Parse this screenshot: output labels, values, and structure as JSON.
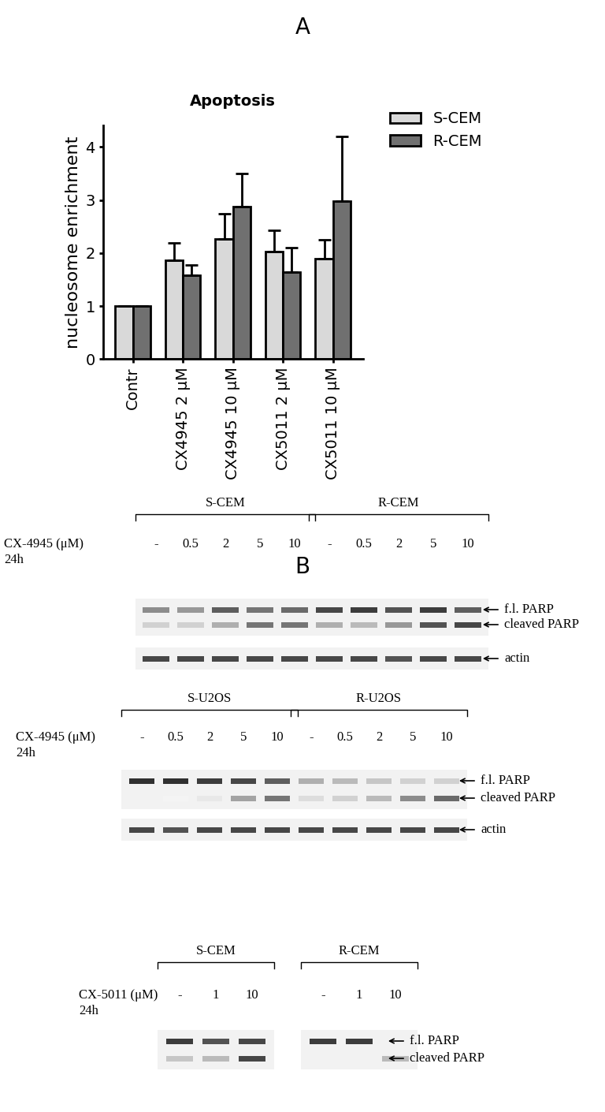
{
  "panel_labels": [
    "A",
    "B"
  ],
  "chart_data": {
    "type": "bar",
    "title": "Apoptosis",
    "y_label": "nucleosome enrichment",
    "categories": [
      "Contr",
      "CX4945 2 μM",
      "CX4945 10 μM",
      "CX5011 2 μM",
      "CX5011 10 μM"
    ],
    "series": [
      {
        "name": "S-CEM",
        "color": "#d9d9d9",
        "values": [
          1,
          1.87,
          2.27,
          2.03,
          1.9
        ],
        "errors": [
          0,
          0.32,
          0.47,
          0.4,
          0.35
        ]
      },
      {
        "name": "R-CEM",
        "color": "#707070",
        "values": [
          1,
          1.58,
          2.88,
          1.64,
          2.98
        ],
        "errors": [
          0,
          0.2,
          0.62,
          0.46,
          1.22
        ]
      }
    ],
    "ylim": [
      0,
      4.4
    ],
    "yticks": [
      0,
      1,
      2,
      3,
      4
    ],
    "legend": "upper left",
    "grid": false
  },
  "blots": [
    {
      "groups": [
        "S-CEM",
        "R-CEM"
      ],
      "treatment": [
        "CX-4945 (μM)",
        "24h"
      ],
      "lanes": [
        "-",
        "0.5",
        "2",
        "5",
        "10"
      ],
      "strips": [
        [
          {
            "label": "f.l. PARP",
            "intensity": [
              [
                0.5,
                0.45,
                0.7,
                0.6,
                0.65
              ],
              [
                0.8,
                0.85,
                0.75,
                0.85,
                0.7
              ]
            ]
          },
          {
            "label": "cleaved PARP",
            "intensity": [
              [
                0.2,
                0.2,
                0.35,
                0.6,
                0.6
              ],
              [
                0.35,
                0.3,
                0.45,
                0.75,
                0.8
              ]
            ]
          }
        ],
        [
          {
            "label": "actin",
            "intensity": [
              [
                0.8,
                0.8,
                0.8,
                0.8,
                0.8
              ],
              [
                0.8,
                0.8,
                0.75,
                0.8,
                0.8
              ]
            ]
          }
        ]
      ]
    },
    {
      "groups": [
        "S-U2OS",
        "R-U2OS"
      ],
      "treatment": [
        "CX-4945 (μM)",
        "24h"
      ],
      "lanes": [
        "-",
        "0.5",
        "2",
        "5",
        "10"
      ],
      "strips": [
        [
          {
            "label": "f.l. PARP",
            "intensity": [
              [
                0.9,
                0.9,
                0.85,
                0.8,
                0.7
              ],
              [
                0.35,
                0.3,
                0.25,
                0.2,
                0.2
              ]
            ]
          },
          {
            "label": "cleaved PARP",
            "intensity": [
              [
                0,
                0.05,
                0.1,
                0.4,
                0.6
              ],
              [
                0.15,
                0.2,
                0.3,
                0.5,
                0.65
              ]
            ]
          }
        ],
        [
          {
            "label": "actin",
            "intensity": [
              [
                0.8,
                0.75,
                0.8,
                0.8,
                0.8
              ],
              [
                0.8,
                0.8,
                0.8,
                0.8,
                0.8
              ]
            ]
          }
        ]
      ]
    },
    {
      "groups": [
        "S-CEM",
        "R-CEM"
      ],
      "treatment": [
        "CX-5011 (μM)",
        "24h"
      ],
      "lanes": [
        "-",
        "1",
        "10"
      ],
      "strips": [
        [
          {
            "label": "f.l. PARP",
            "intensity": [
              [
                0.85,
                0.75,
                0.8
              ],
              [
                0.85,
                0.85,
                0
              ]
            ]
          },
          {
            "label": "cleaved PARP",
            "intensity": [
              [
                0.25,
                0.3,
                0.8
              ],
              [
                0,
                0,
                0.3
              ]
            ]
          }
        ]
      ]
    }
  ]
}
